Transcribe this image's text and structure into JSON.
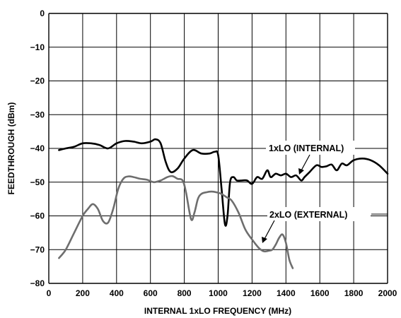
{
  "chart_data": {
    "type": "line",
    "xlabel": "INTERNAL 1xLO FREQUENCY (MHz)",
    "ylabel": "FEEDTHROUGH (dBm)",
    "xlim": [
      0,
      2000
    ],
    "ylim": [
      -80,
      0
    ],
    "x_ticks": [
      0,
      200,
      400,
      600,
      800,
      1000,
      1200,
      1400,
      1600,
      1800,
      2000
    ],
    "y_ticks": [
      0,
      -10,
      -20,
      -30,
      -40,
      -50,
      -60,
      -70,
      -80
    ],
    "x_tick_labels": [
      "0",
      "200",
      "400",
      "600",
      "800",
      "1000",
      "1200",
      "1400",
      "1600",
      "1800",
      "2000"
    ],
    "y_tick_labels": [
      "0",
      "−10",
      "−20",
      "−30",
      "−40",
      "−50",
      "−60",
      "−70",
      "−80"
    ],
    "grid": true,
    "series": [
      {
        "name": "1xLO (INTERNAL)",
        "color": "#000000",
        "x": [
          60,
          100,
          150,
          200,
          250,
          300,
          350,
          400,
          450,
          500,
          550,
          600,
          630,
          660,
          690,
          720,
          760,
          800,
          850,
          900,
          950,
          980,
          1000,
          1020,
          1040,
          1055,
          1070,
          1090,
          1110,
          1140,
          1170,
          1200,
          1230,
          1260,
          1290,
          1310,
          1340,
          1370,
          1400,
          1430,
          1460,
          1490,
          1510,
          1540,
          1580,
          1610,
          1640,
          1670,
          1700,
          1730,
          1760,
          1800,
          1850,
          1900,
          1950,
          2000
        ],
        "y": [
          -40.5,
          -40,
          -39.5,
          -38.5,
          -38.5,
          -39,
          -40,
          -38.5,
          -37.8,
          -38,
          -38.5,
          -38,
          -37.3,
          -38.5,
          -44,
          -47,
          -46,
          -43,
          -40.5,
          -41.5,
          -41.5,
          -41,
          -42,
          -52,
          -62.5,
          -60,
          -50,
          -48.5,
          -49.5,
          -49.5,
          -49.5,
          -50.5,
          -48.5,
          -49,
          -46.5,
          -48.5,
          -47.5,
          -48,
          -47.5,
          -48.5,
          -48,
          -49.5,
          -48.5,
          -47,
          -45,
          -45.5,
          -45.3,
          -44.8,
          -46.5,
          -44.5,
          -45,
          -43.5,
          -43,
          -43.5,
          -45,
          -47.5
        ]
      },
      {
        "name": "2xLO (EXTERNAL)",
        "color": "#6e6e6e",
        "x": [
          60,
          100,
          150,
          200,
          230,
          260,
          290,
          320,
          350,
          380,
          410,
          440,
          470,
          500,
          540,
          580,
          620,
          660,
          700,
          730,
          760,
          790,
          810,
          840,
          860,
          880,
          900,
          930,
          960,
          990,
          1020,
          1050,
          1080,
          1120,
          1160,
          1200,
          1240,
          1270,
          1300,
          1320,
          1340,
          1360,
          1380,
          1400,
          1420,
          1440
        ],
        "y": [
          -72.5,
          -70,
          -65,
          -60,
          -58,
          -56.5,
          -58,
          -61.5,
          -62,
          -58,
          -52,
          -49,
          -48.3,
          -48.5,
          -49,
          -49.3,
          -50,
          -49.5,
          -48.5,
          -48.2,
          -49,
          -49.5,
          -53,
          -61,
          -59,
          -55,
          -53.5,
          -53,
          -52.8,
          -53,
          -53.5,
          -54.5,
          -55.5,
          -59,
          -64,
          -67,
          -69.5,
          -70.5,
          -70.3,
          -70,
          -68.5,
          -66.5,
          -65.5,
          -68,
          -73,
          -75.5
        ]
      }
    ],
    "annotations": [
      {
        "text": "1xLO (INTERNAL)",
        "target_series": "1xLO (INTERNAL)"
      },
      {
        "text": "2xLO (EXTERNAL)",
        "target_series": "2xLO (EXTERNAL)"
      }
    ]
  }
}
